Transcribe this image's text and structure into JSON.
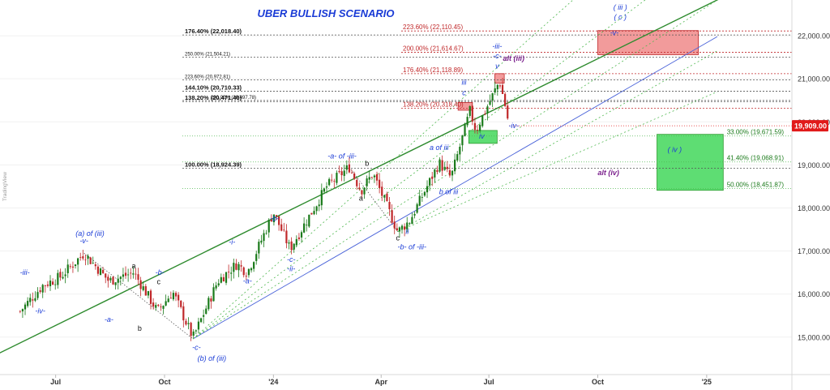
{
  "colors": {
    "up": "#1a7a1a",
    "down": "#c0282a",
    "blue": "#1a3bd6",
    "purple": "#7a1f8c",
    "green_line": "#2e9a2e",
    "dotted_green": "#4fb84f",
    "fib_dark": "#333333",
    "fib_red": "#c0282a",
    "price_tag": "#e11a1a",
    "red_box": "#f08a8a",
    "green_box": "#4cd964"
  },
  "chart_data": {
    "type": "candlestick",
    "title": "UBER BULLISH SCENARIO",
    "watermark": "TradingView",
    "x_ticks": [
      "Jul",
      "Oct",
      "'24",
      "Apr",
      "Jul",
      "Oct",
      "'25"
    ],
    "y_ticks": [
      "15,000.00",
      "16,000.00",
      "17,000.00",
      "18,000.00",
      "19,000.00",
      "20,000.00",
      "21,000.00",
      "22,000.00"
    ],
    "ylim": [
      14130,
      22830
    ],
    "last_price": "19,909.00",
    "last_price_value": 19909,
    "price_path": [
      {
        "date": "2023-06-01",
        "price": 15600
      },
      {
        "date": "2023-06-20",
        "price": 16200
      },
      {
        "date": "2023-07-05",
        "price": 16400
      },
      {
        "date": "2023-07-25",
        "price": 16950
      },
      {
        "date": "2023-08-15",
        "price": 16300
      },
      {
        "date": "2023-09-05",
        "price": 16500
      },
      {
        "date": "2023-09-25",
        "price": 15600
      },
      {
        "date": "2023-10-08",
        "price": 16050
      },
      {
        "date": "2023-10-25",
        "price": 14980
      },
      {
        "date": "2023-11-15",
        "price": 16300
      },
      {
        "date": "2023-12-01",
        "price": 16700
      },
      {
        "date": "2023-12-10",
        "price": 16500
      },
      {
        "date": "2024-01-01",
        "price": 17900
      },
      {
        "date": "2024-01-15",
        "price": 17050
      },
      {
        "date": "2024-02-15",
        "price": 18500
      },
      {
        "date": "2024-03-05",
        "price": 18950
      },
      {
        "date": "2024-03-15",
        "price": 18400
      },
      {
        "date": "2024-03-25",
        "price": 18800
      },
      {
        "date": "2024-04-15",
        "price": 17450
      },
      {
        "date": "2024-04-25",
        "price": 17700
      },
      {
        "date": "2024-05-20",
        "price": 19050
      },
      {
        "date": "2024-05-30",
        "price": 18700
      },
      {
        "date": "2024-06-15",
        "price": 20250
      },
      {
        "date": "2024-06-20",
        "price": 19800
      },
      {
        "date": "2024-07-10",
        "price": 20950
      },
      {
        "date": "2024-07-15",
        "price": 20350
      },
      {
        "date": "2024-07-18",
        "price": 19909
      }
    ],
    "fib_levels": [
      {
        "label": "176.40% (22,018.40)",
        "value": 22018.4,
        "color": "dark",
        "side": "left"
      },
      {
        "label": "223.60% (22,110.45)",
        "value": 22110.45,
        "color": "red",
        "side": "center"
      },
      {
        "label": "200.00% (21,614.67)",
        "value": 21614.67,
        "color": "red",
        "side": "center"
      },
      {
        "label": "250.00% (21,504.21)",
        "value": 21504.21,
        "color": "dark",
        "side": "left"
      },
      {
        "label": "176.40% (21,118.89)",
        "value": 21118.89,
        "color": "red",
        "side": "center"
      },
      {
        "label": "223.60% (20,972.81)",
        "value": 20972.81,
        "color": "dark",
        "side": "left"
      },
      {
        "label": "144.10% (20,710.33)",
        "value": 20710.33,
        "color": "dark",
        "side": "left"
      },
      {
        "label": "138.20% (20,471.40)",
        "value": 20471.4,
        "color": "dark",
        "side": "left"
      },
      {
        "label": "200.00% (20,497.78)",
        "value": 20497.78,
        "color": "dark",
        "side": "left2"
      },
      {
        "label": "138.20% (20,318.40)",
        "value": 20318.4,
        "color": "red",
        "side": "center"
      },
      {
        "label": "100.00% (18,924.39)",
        "value": 18924.39,
        "color": "dark",
        "side": "left"
      },
      {
        "label": "33.00% (19,671.59)",
        "value": 19671.59,
        "color": "green",
        "side": "right"
      },
      {
        "label": "41.40% (19,068.91)",
        "value": 19068.91,
        "color": "green",
        "side": "right"
      },
      {
        "label": "50.00% (18,451.87)",
        "value": 18451.87,
        "color": "green",
        "side": "right"
      }
    ],
    "wave_labels": [
      {
        "text": "-iii-",
        "date": "2023-06-05",
        "price": 16450,
        "color": "blue"
      },
      {
        "text": "-iv-",
        "date": "2023-06-18",
        "price": 15550,
        "color": "blue"
      },
      {
        "text": "(a) of (iii)",
        "date": "2023-07-30",
        "price": 17350,
        "color": "blue"
      },
      {
        "text": "-v-",
        "date": "2023-07-25",
        "price": 17180,
        "color": "blue"
      },
      {
        "text": "a",
        "date": "2023-09-05",
        "price": 16600,
        "color": "dark"
      },
      {
        "text": "-a-",
        "date": "2023-08-15",
        "price": 15350,
        "color": "blue"
      },
      {
        "text": "-b-",
        "date": "2023-09-27",
        "price": 16450,
        "color": "blue"
      },
      {
        "text": "c",
        "date": "2023-09-26",
        "price": 16230,
        "color": "dark"
      },
      {
        "text": "b",
        "date": "2023-09-10",
        "price": 15150,
        "color": "dark"
      },
      {
        "text": "-c-",
        "date": "2023-10-28",
        "price": 14700,
        "color": "blue"
      },
      {
        "text": "(b) of (iii)",
        "date": "2023-11-10",
        "price": 14450,
        "color": "blue"
      },
      {
        "text": "-i-",
        "date": "2023-11-27",
        "price": 17150,
        "color": "blue"
      },
      {
        "text": "-a-",
        "date": "2023-12-10",
        "price": 16250,
        "color": "blue"
      },
      {
        "text": "-b-",
        "date": "2024-01-02",
        "price": 17700,
        "color": "blue"
      },
      {
        "text": "-c-",
        "date": "2024-01-16",
        "price": 16750,
        "color": "blue"
      },
      {
        "text": "-ii-",
        "date": "2024-01-16",
        "price": 16530,
        "color": "blue"
      },
      {
        "text": "-a- of -iii-",
        "date": "2024-02-28",
        "price": 19150,
        "color": "blue"
      },
      {
        "text": "b",
        "date": "2024-03-20",
        "price": 18980,
        "color": "dark"
      },
      {
        "text": "a",
        "date": "2024-03-15",
        "price": 18170,
        "color": "dark"
      },
      {
        "text": "c",
        "date": "2024-04-15",
        "price": 17250,
        "color": "dark"
      },
      {
        "text": "ii",
        "date": "2024-04-23",
        "price": 17400,
        "color": "blue"
      },
      {
        "text": "-b- of -iii-",
        "date": "2024-04-27",
        "price": 17040,
        "color": "blue"
      },
      {
        "text": "a of iii",
        "date": "2024-05-20",
        "price": 19350,
        "color": "blue"
      },
      {
        "text": "b of iii",
        "date": "2024-05-28",
        "price": 18320,
        "color": "blue"
      },
      {
        "text": "iii",
        "date": "2024-06-10",
        "price": 20860,
        "color": "blue"
      },
      {
        "text": "c",
        "date": "2024-06-10",
        "price": 20620,
        "color": "blue"
      },
      {
        "text": "iv",
        "date": "2024-06-25",
        "price": 19610,
        "color": "blue"
      },
      {
        "text": "-iii-",
        "date": "2024-07-08",
        "price": 21700,
        "color": "blue"
      },
      {
        "text": "-c-",
        "date": "2024-07-08",
        "price": 21470,
        "color": "blue"
      },
      {
        "text": "v",
        "date": "2024-07-08",
        "price": 21240,
        "color": "blue"
      },
      {
        "text": "alt (iii)",
        "date": "2024-07-22",
        "price": 21420,
        "color": "purple"
      },
      {
        "text": "-iv-",
        "date": "2024-07-22",
        "price": 19850,
        "color": "blue"
      },
      {
        "text": "( iii )",
        "date": "2024-10-20",
        "price": 22600,
        "color": "blue"
      },
      {
        "text": "( c )",
        "date": "2024-10-20",
        "price": 22380,
        "color": "blue"
      },
      {
        "text": "-v-",
        "date": "2024-10-15",
        "price": 22010,
        "color": "blue"
      },
      {
        "text": "( iv )",
        "date": "2024-12-05",
        "price": 19300,
        "color": "blue"
      },
      {
        "text": "alt (iv)",
        "date": "2024-10-10",
        "price": 18760,
        "color": "purple"
      }
    ],
    "boxes": [
      {
        "name": "target-v-box",
        "color": "red",
        "date_from": "2024-10-01",
        "date_to": "2024-12-25",
        "price_low": 21560,
        "price_high": 22120
      },
      {
        "name": "alt-iii-box",
        "color": "red",
        "date_from": "2024-07-06",
        "date_to": "2024-07-14",
        "price_low": 20900,
        "price_high": 21120
      },
      {
        "name": "c-box",
        "color": "red",
        "date_from": "2024-06-05",
        "date_to": "2024-06-17",
        "price_low": 20270,
        "price_high": 20450
      },
      {
        "name": "iv-box",
        "color": "green",
        "date_from": "2024-06-14",
        "date_to": "2024-07-08",
        "price_low": 19500,
        "price_high": 19800
      },
      {
        "name": "wave-iv-box",
        "color": "green",
        "date_from": "2024-11-20",
        "date_to": "2025-01-15",
        "price_low": 18410,
        "price_high": 19710
      }
    ],
    "trend_lines": [
      {
        "name": "main-trend-line",
        "color": "green_solid",
        "from": {
          "date": "2023-04-15",
          "price": 14230
        },
        "to": {
          "date": "2025-01-15",
          "price": 22900
        }
      },
      {
        "name": "blue-trend-line",
        "color": "blue",
        "from": {
          "date": "2023-10-25",
          "price": 14960
        },
        "to": {
          "date": "2025-01-10",
          "price": 21980
        }
      },
      {
        "name": "fan-1",
        "color": "dotted",
        "from": {
          "date": "2023-10-25",
          "price": 14960
        },
        "to": {
          "date": "2024-09-10",
          "price": 22830
        }
      },
      {
        "name": "fan-2",
        "color": "dotted",
        "from": {
          "date": "2023-10-25",
          "price": 14960
        },
        "to": {
          "date": "2024-11-10",
          "price": 22830
        }
      },
      {
        "name": "fan-3",
        "color": "dotted",
        "from": {
          "date": "2023-10-25",
          "price": 14960
        },
        "to": {
          "date": "2025-01-10",
          "price": 22830
        }
      },
      {
        "name": "fan-4",
        "color": "dotted",
        "from": {
          "date": "2024-04-15",
          "price": 17450
        },
        "to": {
          "date": "2025-01-10",
          "price": 21650
        }
      },
      {
        "name": "fan-5",
        "color": "dotted",
        "from": {
          "date": "2024-04-15",
          "price": 17450
        },
        "to": {
          "date": "2025-01-10",
          "price": 20700
        }
      },
      {
        "name": "dotted-path-1",
        "color": "dark_dotted",
        "from": {
          "date": "2023-07-25",
          "price": 16950
        },
        "to": {
          "date": "2023-10-25",
          "price": 14960
        }
      },
      {
        "name": "dotted-path-2",
        "color": "dark_dotted",
        "from": {
          "date": "2024-03-05",
          "price": 18950
        },
        "to": {
          "date": "2024-04-15",
          "price": 17450
        }
      }
    ]
  }
}
